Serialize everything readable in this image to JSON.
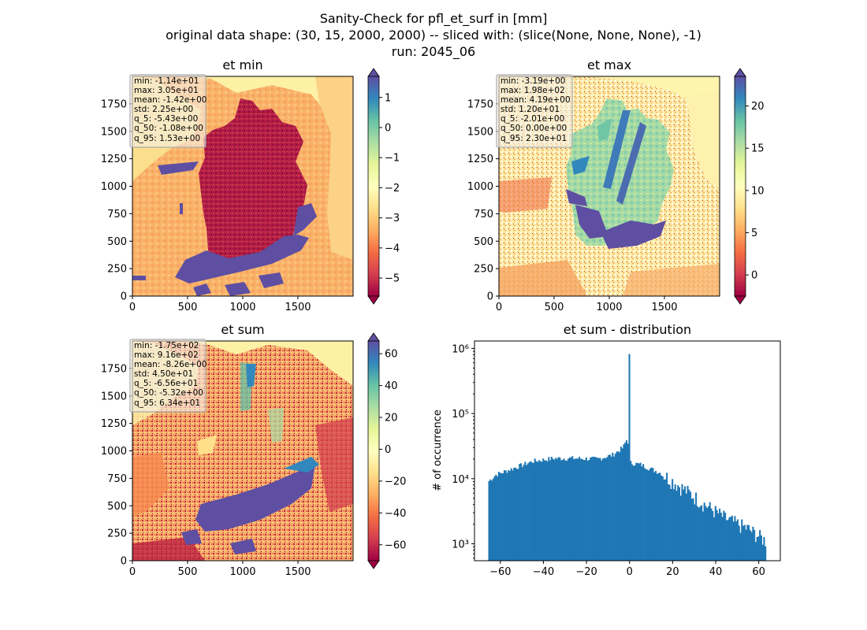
{
  "figure": {
    "title_lines": [
      "Sanity-Check for pfl_et_surf in [mm]",
      "original data shape: (30, 15, 2000, 2000) -- sliced with: (slice(None, None, None), -1)",
      "run: 2045_06"
    ]
  },
  "chart_data": [
    {
      "type": "heatmap",
      "title": "et min",
      "x_ticks": [
        "0",
        "500",
        "1000",
        "1500"
      ],
      "y_ticks": [
        "0",
        "250",
        "500",
        "750",
        "1000",
        "1250",
        "1500",
        "1750"
      ],
      "xlim": [
        0,
        2000
      ],
      "ylim": [
        0,
        2000
      ],
      "colormap": "Spectral",
      "colorbar": {
        "range": [
          -5.6,
          1.7
        ],
        "ticks": [
          1,
          0,
          -1,
          -2,
          -3,
          -4,
          -5
        ],
        "tick_labels": [
          "1",
          "0",
          "−1",
          "−2",
          "−3",
          "−4",
          "−5"
        ],
        "extend": "both"
      },
      "stats": [
        "min: -1.14e+01",
        "max: 3.05e+01",
        "mean: -1.42e+00",
        "std: 2.25e+00",
        "q_5: -5.43e+00",
        "q_50: -1.08e+00",
        "q_95: 1.53e+00"
      ]
    },
    {
      "type": "heatmap",
      "title": "et max",
      "x_ticks": [
        "0",
        "500",
        "1000",
        "1500"
      ],
      "y_ticks": [
        "0",
        "250",
        "500",
        "750",
        "1000",
        "1250",
        "1500",
        "1750"
      ],
      "xlim": [
        0,
        2000
      ],
      "ylim": [
        0,
        2000
      ],
      "colormap": "Spectral",
      "colorbar": {
        "range": [
          -2.5,
          23.5
        ],
        "ticks": [
          20,
          15,
          10,
          5,
          0
        ],
        "tick_labels": [
          "20",
          "15",
          "10",
          "5",
          "0"
        ],
        "extend": "both"
      },
      "stats": [
        "min: -3.19e+00",
        "max: 1.98e+02",
        "mean: 4.19e+00",
        "std: 1.20e+01",
        "q_5: -2.01e+00",
        "q_50: 0.00e+00",
        "q_95: 2.30e+01"
      ]
    },
    {
      "type": "heatmap",
      "title": "et sum",
      "x_ticks": [
        "0",
        "500",
        "1000",
        "1500"
      ],
      "y_ticks": [
        "0",
        "250",
        "500",
        "750",
        "1000",
        "1250",
        "1500",
        "1750"
      ],
      "xlim": [
        0,
        2000
      ],
      "ylim": [
        0,
        2000
      ],
      "colormap": "Spectral",
      "colorbar": {
        "range": [
          -70,
          68
        ],
        "ticks": [
          60,
          40,
          20,
          0,
          -20,
          -40,
          -60
        ],
        "tick_labels": [
          "60",
          "40",
          "20",
          "0",
          "−20",
          "−40",
          "−60"
        ],
        "extend": "both"
      },
      "stats": [
        "min: -1.75e+02",
        "max: 9.16e+02",
        "mean: -8.26e+00",
        "std: 4.50e+01",
        "q_5: -6.56e+01",
        "q_50: -5.32e+00",
        "q_95: 6.34e+01"
      ]
    },
    {
      "type": "bar",
      "title": "et sum - distribution",
      "ylabel": "# of occurrence",
      "yscale": "log",
      "xlim": [
        -72,
        70
      ],
      "ylim": [
        550,
        1300000
      ],
      "x_ticks": [
        -60,
        -40,
        -20,
        0,
        20,
        40,
        60
      ],
      "x_tick_labels": [
        "−60",
        "−40",
        "−20",
        "0",
        "20",
        "40",
        "60"
      ],
      "y_ticks": [
        1000,
        10000,
        100000,
        1000000
      ],
      "y_tick_labels": [
        "10³",
        "10⁴",
        "10⁵",
        "10⁶"
      ],
      "bar_color": "#1f77b4",
      "bin_range": [
        -65.6,
        63.4
      ],
      "bins": 200,
      "peak": {
        "x": 0,
        "count": 820000
      },
      "profile_points": [
        {
          "x": -65.6,
          "count": 9000
        },
        {
          "x": -62,
          "count": 11500
        },
        {
          "x": -55,
          "count": 14000
        },
        {
          "x": -45,
          "count": 18500
        },
        {
          "x": -35,
          "count": 20500
        },
        {
          "x": -25,
          "count": 20500
        },
        {
          "x": -15,
          "count": 20000
        },
        {
          "x": -8,
          "count": 23000
        },
        {
          "x": -3,
          "count": 30000
        },
        {
          "x": -1,
          "count": 42000
        },
        {
          "x": 0.5,
          "count": 17500
        },
        {
          "x": 5,
          "count": 16500
        },
        {
          "x": 15,
          "count": 12000
        },
        {
          "x": 25,
          "count": 7000
        },
        {
          "x": 35,
          "count": 4000
        },
        {
          "x": 45,
          "count": 2400
        },
        {
          "x": 55,
          "count": 1700
        },
        {
          "x": 63.4,
          "count": 1100
        }
      ]
    }
  ]
}
